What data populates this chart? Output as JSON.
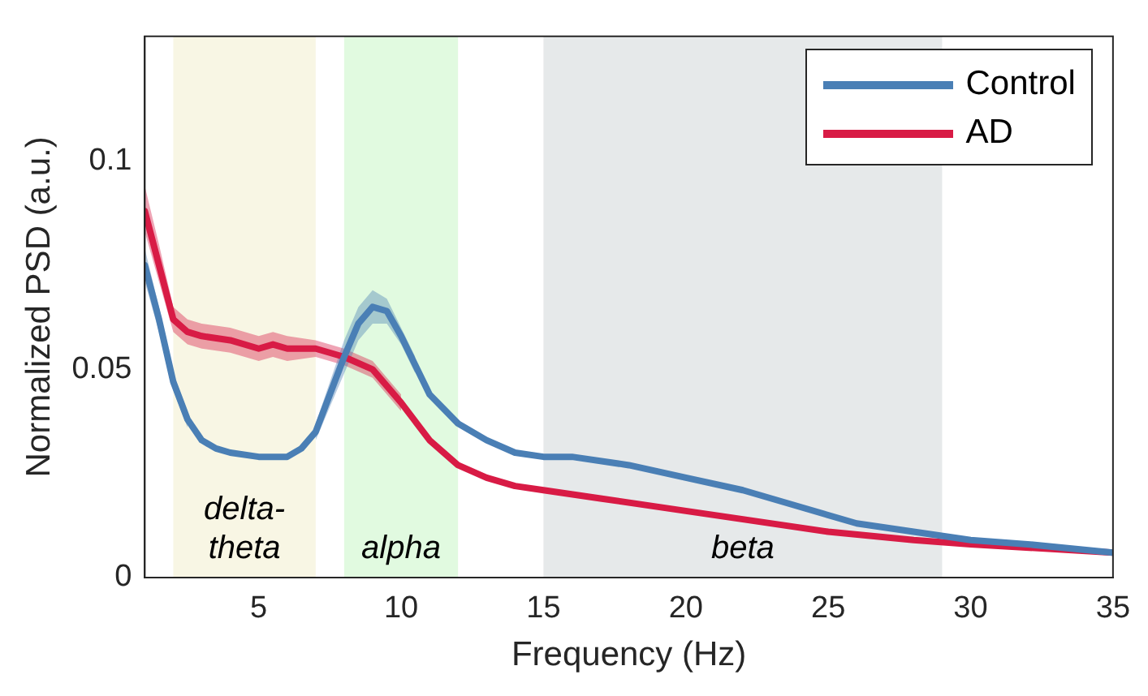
{
  "chart_data": {
    "type": "line",
    "xlabel": "Frequency (Hz)",
    "ylabel": "Normalized PSD (a.u.)",
    "xlim": [
      1,
      35
    ],
    "xticks": [
      5,
      10,
      15,
      20,
      25,
      30,
      35
    ],
    "ylim": [
      0,
      0.13
    ],
    "yticks": [
      0,
      0.05,
      0.1
    ],
    "grid": false,
    "legend": "top right",
    "marker": "none",
    "line_style": "solid",
    "bands": [
      {
        "axis": "x",
        "from": 2,
        "to": 7,
        "label": "delta-\ntheta",
        "color": "#f8f6e4"
      },
      {
        "axis": "x",
        "from": 8,
        "to": 12,
        "label": "alpha",
        "color": "#e1fae0"
      },
      {
        "axis": "x",
        "from": 15,
        "to": 29,
        "label": "beta",
        "color": "#e6e9ea"
      }
    ],
    "series": [
      {
        "name": "Control",
        "color": "#4a7fb5",
        "x": [
          1,
          1.5,
          2,
          2.5,
          3,
          3.5,
          4,
          5,
          6,
          6.5,
          7,
          7.5,
          8,
          8.5,
          9,
          9.5,
          10,
          10.5,
          11,
          12,
          13,
          14,
          15,
          16,
          18,
          20,
          22,
          24,
          26,
          28,
          30,
          32,
          35
        ],
        "values": [
          0.075,
          0.062,
          0.047,
          0.038,
          0.033,
          0.031,
          0.03,
          0.029,
          0.029,
          0.031,
          0.035,
          0.044,
          0.053,
          0.061,
          0.065,
          0.064,
          0.058,
          0.051,
          0.044,
          0.037,
          0.033,
          0.03,
          0.029,
          0.029,
          0.027,
          0.024,
          0.021,
          0.017,
          0.013,
          0.011,
          0.009,
          0.008,
          0.006
        ],
        "lower": [
          0.071,
          0.059,
          0.045,
          0.036,
          null,
          null,
          null,
          null,
          null,
          null,
          0.033,
          0.041,
          0.049,
          0.057,
          0.061,
          0.061,
          0.056,
          0.049,
          null,
          null,
          null,
          null,
          null,
          null,
          null,
          null,
          null,
          null,
          null,
          null,
          null,
          null,
          null
        ],
        "upper": [
          0.079,
          0.065,
          0.049,
          0.04,
          null,
          null,
          null,
          null,
          null,
          null,
          0.037,
          0.047,
          0.057,
          0.065,
          0.069,
          0.067,
          0.06,
          0.053,
          null,
          null,
          null,
          null,
          null,
          null,
          null,
          null,
          null,
          null,
          null,
          null,
          null,
          null,
          null
        ]
      },
      {
        "name": "AD",
        "color": "#d81b45",
        "x": [
          1,
          1.5,
          2,
          2.5,
          3,
          4,
          5,
          5.5,
          6,
          7,
          8,
          9,
          10,
          11,
          12,
          13,
          14,
          15,
          17,
          20,
          22,
          25,
          28,
          30,
          35
        ],
        "values": [
          0.088,
          0.075,
          0.062,
          0.059,
          0.058,
          0.057,
          0.055,
          0.056,
          0.055,
          0.055,
          0.053,
          0.05,
          0.042,
          0.033,
          0.027,
          0.024,
          0.022,
          0.021,
          0.019,
          0.016,
          0.014,
          0.011,
          0.009,
          0.008,
          0.006
        ],
        "lower": [
          0.083,
          0.071,
          0.059,
          0.056,
          0.055,
          0.054,
          0.052,
          0.053,
          0.052,
          0.053,
          0.051,
          0.048,
          0.04,
          null,
          null,
          null,
          null,
          null,
          null,
          null,
          null,
          null,
          null,
          null,
          null
        ],
        "upper": [
          0.094,
          0.08,
          0.065,
          0.062,
          0.061,
          0.06,
          0.058,
          0.059,
          0.058,
          0.057,
          0.055,
          0.052,
          0.044,
          null,
          null,
          null,
          null,
          null,
          null,
          null,
          null,
          null,
          null,
          null,
          null
        ]
      }
    ]
  }
}
